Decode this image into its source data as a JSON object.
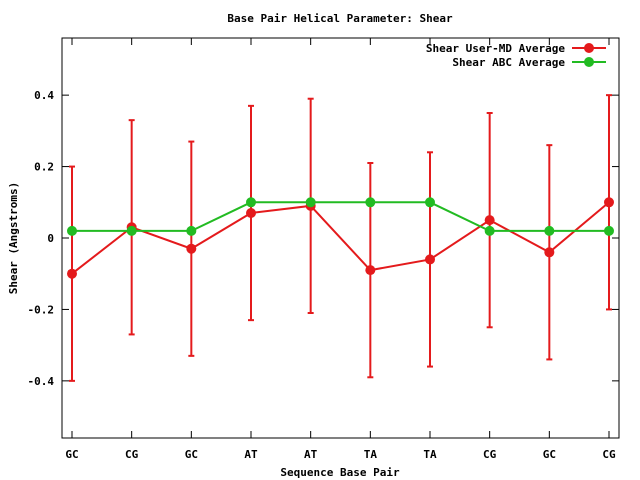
{
  "chart_data": {
    "type": "line",
    "title": "Base Pair Helical Parameter: Shear",
    "xlabel": "Sequence Base Pair",
    "ylabel": "Shear (Angstroms)",
    "categories": [
      "GC",
      "CG",
      "GC",
      "AT",
      "AT",
      "TA",
      "TA",
      "CG",
      "GC",
      "CG"
    ],
    "ylim": [
      -0.56,
      0.56
    ],
    "yticks": [
      {
        "value": -0.4,
        "label": "-0.4"
      },
      {
        "value": -0.2,
        "label": "-0.2"
      },
      {
        "value": 0,
        "label": "0"
      },
      {
        "value": 0.2,
        "label": "0.2"
      },
      {
        "value": 0.4,
        "label": "0.4"
      }
    ],
    "grid": false,
    "legend_position": "top-right",
    "series": [
      {
        "name": "Shear User-MD Average",
        "color": "#e41a1c",
        "values": [
          -0.1,
          0.03,
          -0.03,
          0.07,
          0.09,
          -0.09,
          -0.06,
          0.05,
          -0.04,
          0.1
        ],
        "error": [
          0.3,
          0.3,
          0.3,
          0.3,
          0.3,
          0.3,
          0.3,
          0.3,
          0.3,
          0.3
        ]
      },
      {
        "name": "Shear ABC Average",
        "color": "#22bb22",
        "values": [
          0.02,
          0.02,
          0.02,
          0.1,
          0.1,
          0.1,
          0.1,
          0.02,
          0.02,
          0.02
        ]
      }
    ]
  }
}
